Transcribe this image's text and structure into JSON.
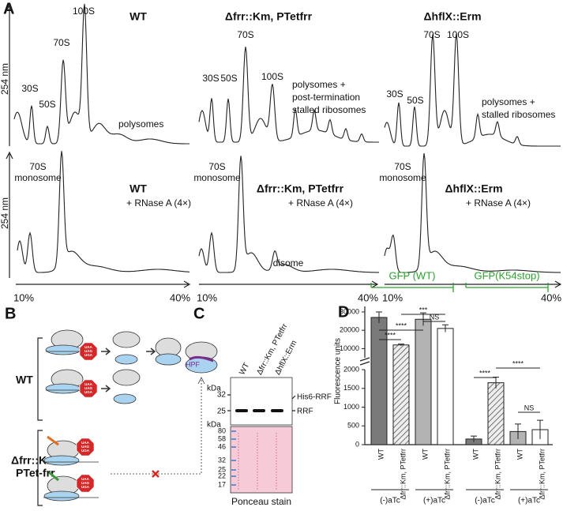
{
  "figure": {
    "panel_a": {
      "letter": "A",
      "y_labels": [
        "254 nm",
        "254 nm"
      ],
      "columns": [
        {
          "title": "WT",
          "peak_labels": [
            "30S",
            "50S",
            "70S",
            "100S"
          ],
          "note_lines": [
            "polysomes"
          ],
          "rnase_title": "WT",
          "rnase_treatment": "+ RNase A (4×)",
          "monosome_lines": [
            "70S",
            "monosome"
          ],
          "axis_start": "10%",
          "axis_end": "40%"
        },
        {
          "title": "Δfrr::Km, PTetfrr",
          "peak_labels": [
            "30S",
            "50S",
            "70S",
            "100S"
          ],
          "note_lines": [
            "polysomes +",
            "post-termination",
            "stalled ribosomes"
          ],
          "rnase_title": "Δfrr::Km, PTetfrr",
          "rnase_treatment": "+ RNase A (4×)",
          "monosome_lines": [
            "70S",
            "monosome"
          ],
          "disome": "disome",
          "axis_start": "10%",
          "axis_end": "40%"
        },
        {
          "title": "ΔhflX::Erm",
          "peak_labels": [
            "30S",
            "50S",
            "70S",
            "100S"
          ],
          "note_lines": [
            "polysomes +",
            "stalled ribosomes"
          ],
          "rnase_title": "ΔhflX::Erm",
          "rnase_treatment": "+ RNase A (4×)",
          "monosome_lines": [
            "70S",
            "monosome"
          ],
          "axis_start": "10%",
          "axis_end": "40%"
        }
      ]
    },
    "panel_b": {
      "letter": "B",
      "wt_label": "WT",
      "mutant_lines": [
        "Δfrr::Km",
        "PTet-frr"
      ],
      "hpf": "HPF",
      "stop_signs": [
        [
          "UAA",
          "UAG",
          "UGA"
        ],
        [
          "UAA",
          "UAG",
          "UGA"
        ],
        [
          "UAA",
          "UAG",
          "UGA"
        ],
        [
          "UAA",
          "UAG",
          "UGA"
        ]
      ]
    },
    "panel_c": {
      "letter": "C",
      "lanes": [
        "WT",
        "Δfrr::Km, PTetfrr",
        "ΔhflX::Erm"
      ],
      "blot_unit": "kDa",
      "blot_markers": [
        "32",
        "25"
      ],
      "bands": [
        "His6-RRF",
        "RRF"
      ],
      "ladder_unit": "kDa",
      "ladder": [
        "80",
        "58",
        "46",
        "32",
        "25",
        "22",
        "17"
      ],
      "stain": "Ponceau stain"
    }
  },
  "chart_data": {
    "type": "bar",
    "letter": "D",
    "y_label": "Fluorescence units",
    "categories": [
      "WT",
      "Δfrr::Km, PTetfrr",
      "WT",
      "Δfrr::Km, PTetfrr",
      "WT",
      "Δfrr::Km, PTetfrr",
      "WT",
      "Δfrr::Km, PTetfrr"
    ],
    "values": [
      27000,
      12000,
      26000,
      21000,
      150,
      1650,
      350,
      400
    ],
    "errors": [
      3000,
      500,
      3500,
      2000,
      80,
      150,
      200,
      250
    ],
    "colors": [
      "#7a7a7a",
      "#d9d9d9",
      "#b3b3b3",
      "#ffffff",
      "#7a7a7a",
      "#d9d9d9",
      "#b3b3b3",
      "#ffffff"
    ],
    "hatched": [
      false,
      true,
      false,
      false,
      false,
      true,
      false,
      false
    ],
    "ylim_lower": [
      0,
      2000
    ],
    "yticks_lower": [
      0,
      500,
      1000,
      1500,
      2000
    ],
    "ylim_upper": [
      5000,
      33000
    ],
    "yticks_upper": [
      10000,
      20000,
      30000
    ],
    "groups": [
      {
        "name": "GFP (WT)",
        "color": "#2ca02c"
      },
      {
        "name": "GFP(K54stop)",
        "color": "#2ca02c"
      }
    ],
    "conditions": [
      "(-)aTc",
      "(+)aTc",
      "(-)aTc",
      "(+)aTc"
    ],
    "significance": [
      "****",
      "****",
      "***",
      "NS",
      "****",
      "****",
      "NS"
    ]
  }
}
